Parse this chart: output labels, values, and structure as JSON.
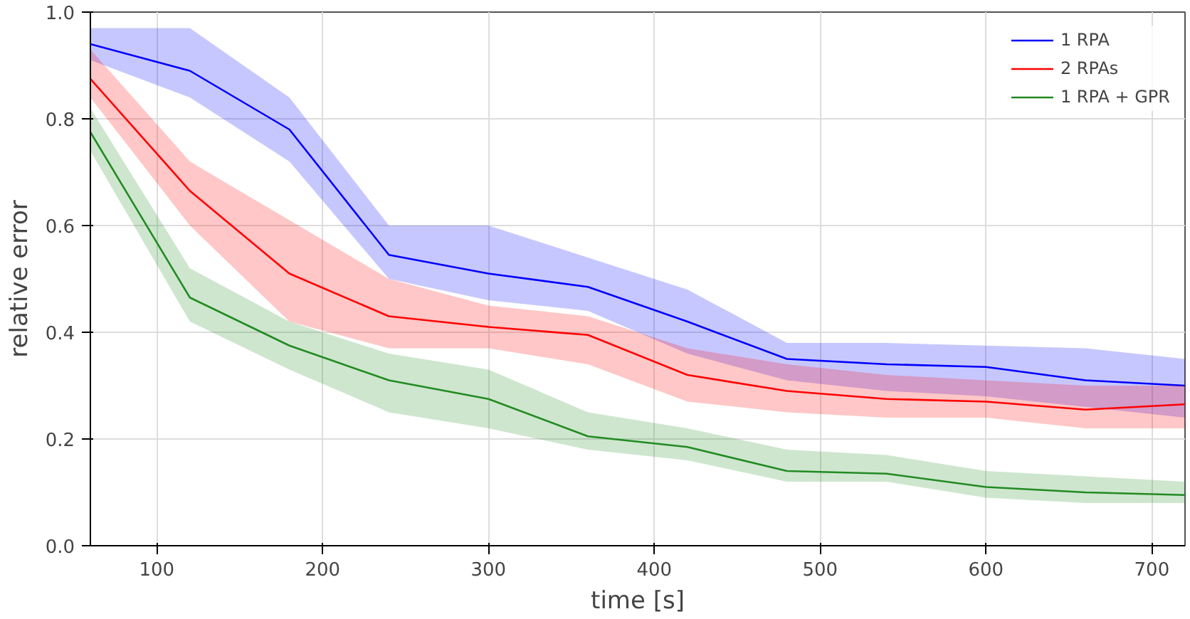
{
  "chart_data": {
    "type": "line",
    "xlabel": "time [s]",
    "ylabel": "relative error",
    "x": [
      60,
      120,
      180,
      240,
      300,
      360,
      420,
      480,
      540,
      600,
      660,
      720
    ],
    "xlim": [
      60,
      720
    ],
    "xticks": [
      100,
      200,
      300,
      400,
      500,
      600,
      700
    ],
    "ylim": [
      0,
      1
    ],
    "yticks": [
      {
        "value": 0,
        "label": "0.0"
      },
      {
        "value": 0.2,
        "label": "0.2"
      },
      {
        "value": 0.4,
        "label": "0.4"
      },
      {
        "value": 0.6,
        "label": "0.6"
      },
      {
        "value": 0.8,
        "label": "0.8"
      },
      {
        "value": 1,
        "label": "1.0"
      }
    ],
    "grid": true,
    "legend": "top right",
    "line_style": "solid",
    "marker": "none",
    "series": [
      {
        "name": "1 RPA",
        "color": "#0000ff",
        "values": [
          0.94,
          0.89,
          0.78,
          0.545,
          0.51,
          0.485,
          0.42,
          0.35,
          0.34,
          0.335,
          0.31,
          0.3
        ],
        "lower": [
          0.91,
          0.84,
          0.72,
          0.5,
          0.46,
          0.44,
          0.36,
          0.31,
          0.29,
          0.28,
          0.26,
          0.24
        ],
        "upper": [
          0.97,
          0.97,
          0.84,
          0.6,
          0.6,
          0.54,
          0.48,
          0.38,
          0.38,
          0.375,
          0.37,
          0.35
        ]
      },
      {
        "name": "2 RPAs",
        "color": "#ff0000",
        "values": [
          0.875,
          0.665,
          0.51,
          0.43,
          0.41,
          0.395,
          0.32,
          0.29,
          0.275,
          0.27,
          0.255,
          0.265
        ],
        "lower": [
          0.84,
          0.6,
          0.42,
          0.37,
          0.37,
          0.34,
          0.27,
          0.25,
          0.24,
          0.24,
          0.22,
          0.22
        ],
        "upper": [
          0.93,
          0.72,
          0.61,
          0.5,
          0.45,
          0.43,
          0.37,
          0.34,
          0.32,
          0.31,
          0.3,
          0.3
        ]
      },
      {
        "name": "1 RPA + GPR",
        "color": "#228b22",
        "values": [
          0.775,
          0.465,
          0.375,
          0.31,
          0.275,
          0.205,
          0.185,
          0.14,
          0.135,
          0.11,
          0.1,
          0.095
        ],
        "lower": [
          0.74,
          0.42,
          0.33,
          0.25,
          0.22,
          0.18,
          0.16,
          0.12,
          0.12,
          0.09,
          0.08,
          0.08
        ],
        "upper": [
          0.82,
          0.52,
          0.42,
          0.36,
          0.33,
          0.25,
          0.22,
          0.18,
          0.17,
          0.14,
          0.13,
          0.12
        ]
      }
    ]
  }
}
